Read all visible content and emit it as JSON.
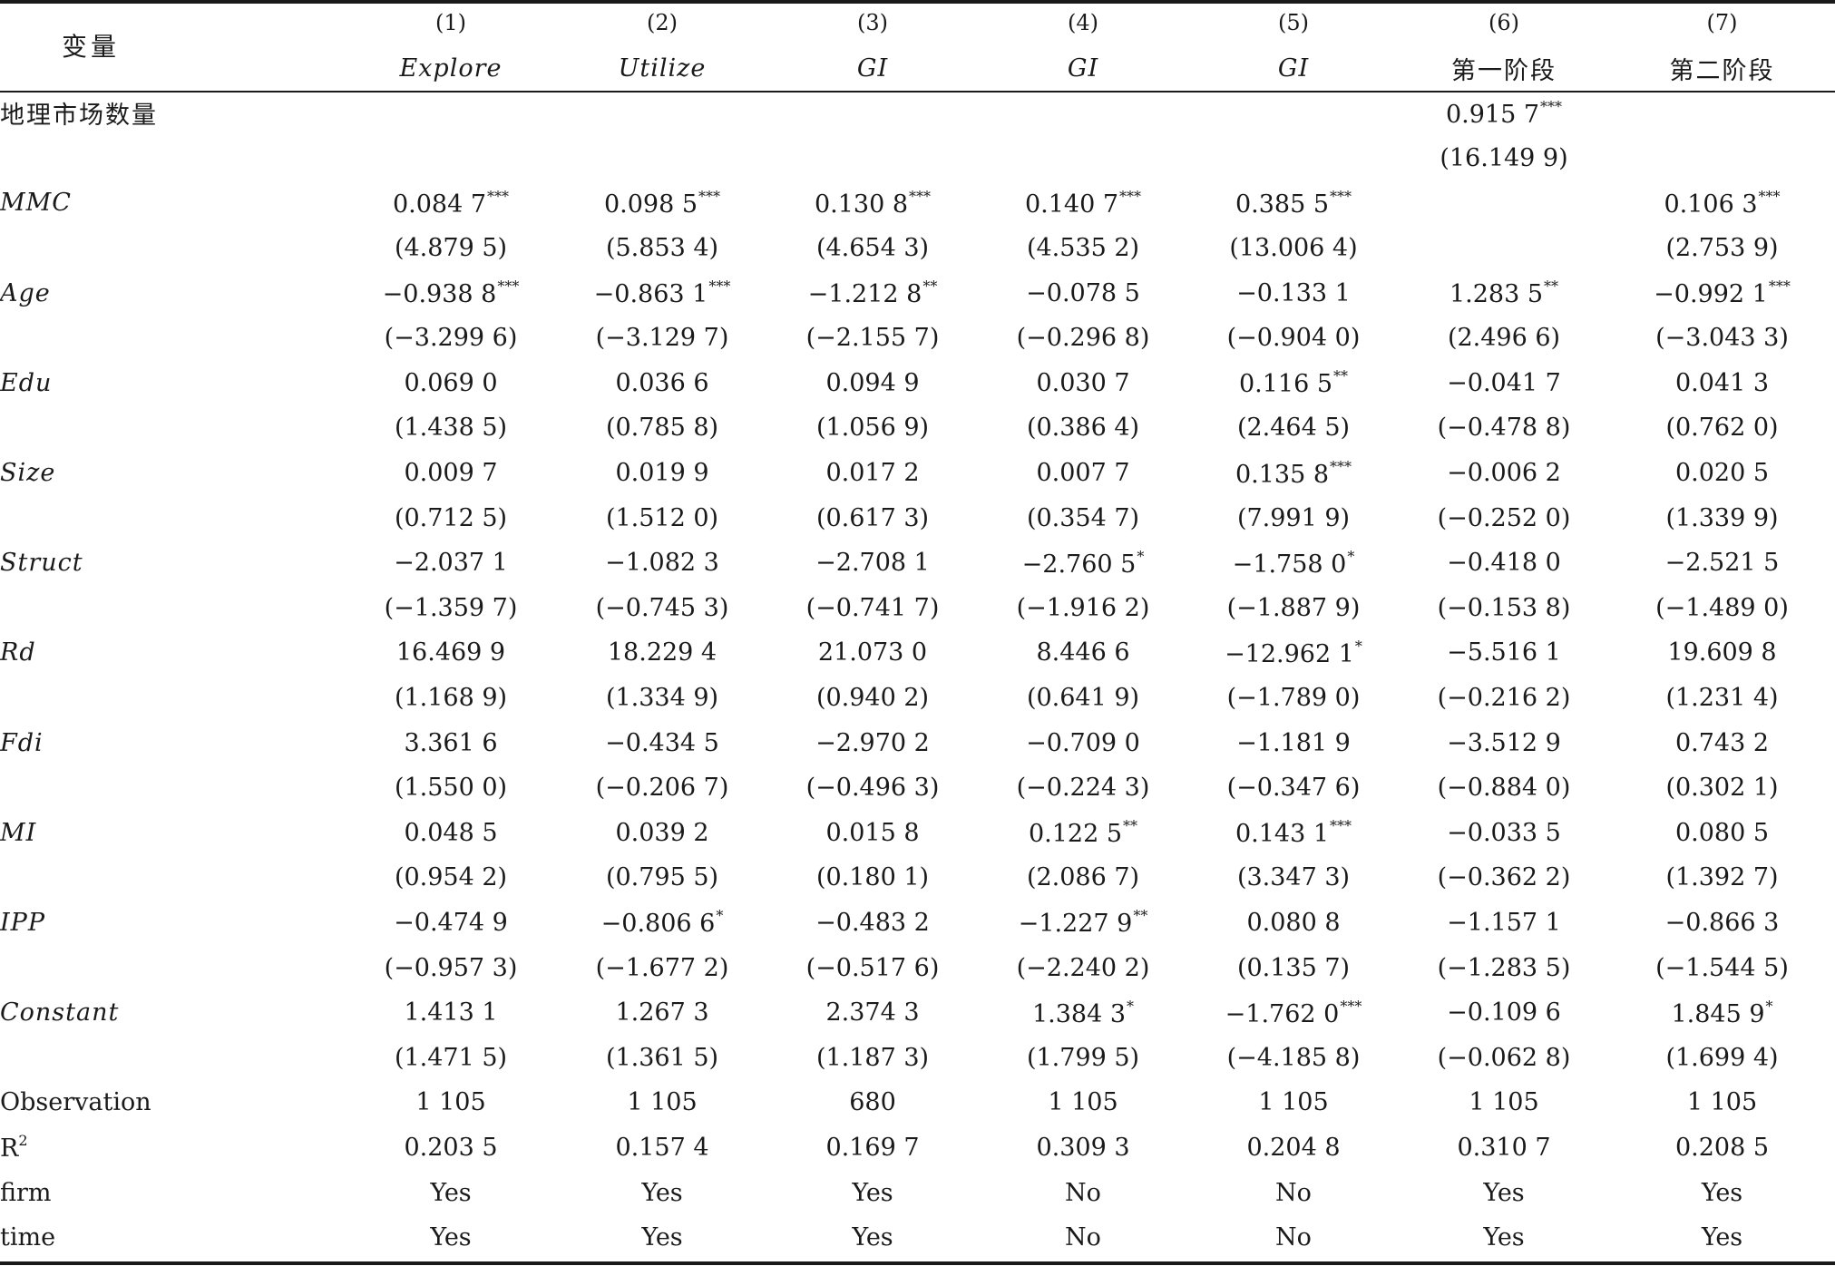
{
  "header": {
    "variable_label": "变量",
    "col_numbers": [
      "(1)",
      "(2)",
      "(3)",
      "(4)",
      "(5)",
      "(6)",
      "(7)"
    ],
    "col_names": [
      "Explore",
      "Utilize",
      "GI",
      "GI",
      "GI",
      "第一阶段",
      "第二阶段"
    ]
  },
  "rows": [
    {
      "label": "地理市场数量",
      "cjk": true,
      "coef": [
        "",
        "",
        "",
        "",
        "",
        "0.915 7",
        ""
      ],
      "stars": [
        "",
        "",
        "",
        "",
        "",
        "***",
        ""
      ],
      "t": [
        "",
        "",
        "",
        "",
        "",
        "(16.149 9)",
        ""
      ]
    },
    {
      "label": "MMC",
      "coef": [
        "0.084 7",
        "0.098 5",
        "0.130 8",
        "0.140 7",
        "0.385 5",
        "",
        "0.106 3"
      ],
      "stars": [
        "***",
        "***",
        "***",
        "***",
        "***",
        "",
        "***"
      ],
      "t": [
        "(4.879 5)",
        "(5.853 4)",
        "(4.654 3)",
        "(4.535 2)",
        "(13.006 4)",
        "",
        "(2.753 9)"
      ]
    },
    {
      "label": "Age",
      "coef": [
        "−0.938 8",
        "−0.863 1",
        "−1.212 8",
        "−0.078 5",
        "−0.133 1",
        "1.283 5",
        "−0.992 1"
      ],
      "stars": [
        "***",
        "***",
        "**",
        "",
        "",
        "**",
        "***"
      ],
      "t": [
        "(−3.299 6)",
        "(−3.129 7)",
        "(−2.155 7)",
        "(−0.296 8)",
        "(−0.904 0)",
        "(2.496 6)",
        "(−3.043 3)"
      ]
    },
    {
      "label": "Edu",
      "coef": [
        "0.069 0",
        "0.036 6",
        "0.094 9",
        "0.030 7",
        "0.116 5",
        "−0.041 7",
        "0.041 3"
      ],
      "stars": [
        "",
        "",
        "",
        "",
        "**",
        "",
        ""
      ],
      "t": [
        "(1.438 5)",
        "(0.785 8)",
        "(1.056 9)",
        "(0.386 4)",
        "(2.464 5)",
        "(−0.478 8)",
        "(0.762 0)"
      ]
    },
    {
      "label": "Size",
      "coef": [
        "0.009 7",
        "0.019 9",
        "0.017 2",
        "0.007 7",
        "0.135 8",
        "−0.006 2",
        "0.020 5"
      ],
      "stars": [
        "",
        "",
        "",
        "",
        "***",
        "",
        ""
      ],
      "t": [
        "(0.712 5)",
        "(1.512 0)",
        "(0.617 3)",
        "(0.354 7)",
        "(7.991 9)",
        "(−0.252 0)",
        "(1.339 9)"
      ]
    },
    {
      "label": "Struct",
      "coef": [
        "−2.037 1",
        "−1.082 3",
        "−2.708 1",
        "−2.760 5",
        "−1.758 0",
        "−0.418 0",
        "−2.521 5"
      ],
      "stars": [
        "",
        "",
        "",
        "*",
        "*",
        "",
        ""
      ],
      "t": [
        "(−1.359 7)",
        "(−0.745 3)",
        "(−0.741 7)",
        "(−1.916 2)",
        "(−1.887 9)",
        "(−0.153 8)",
        "(−1.489 0)"
      ]
    },
    {
      "label": "Rd",
      "coef": [
        "16.469 9",
        "18.229 4",
        "21.073 0",
        "8.446 6",
        "−12.962 1",
        "−5.516 1",
        "19.609 8"
      ],
      "stars": [
        "",
        "",
        "",
        "",
        "*",
        "",
        ""
      ],
      "t": [
        "(1.168 9)",
        "(1.334 9)",
        "(0.940 2)",
        "(0.641 9)",
        "(−1.789 0)",
        "(−0.216 2)",
        "(1.231 4)"
      ]
    },
    {
      "label": "Fdi",
      "coef": [
        "3.361 6",
        "−0.434 5",
        "−2.970 2",
        "−0.709 0",
        "−1.181 9",
        "−3.512 9",
        "0.743 2"
      ],
      "stars": [
        "",
        "",
        "",
        "",
        "",
        "",
        ""
      ],
      "t": [
        "(1.550 0)",
        "(−0.206 7)",
        "(−0.496 3)",
        "(−0.224 3)",
        "(−0.347 6)",
        "(−0.884 0)",
        "(0.302 1)"
      ]
    },
    {
      "label": "MI",
      "coef": [
        "0.048 5",
        "0.039 2",
        "0.015 8",
        "0.122 5",
        "0.143 1",
        "−0.033 5",
        "0.080 5"
      ],
      "stars": [
        "",
        "",
        "",
        "**",
        "***",
        "",
        ""
      ],
      "t": [
        "(0.954 2)",
        "(0.795 5)",
        "(0.180 1)",
        "(2.086 7)",
        "(3.347 3)",
        "(−0.362 2)",
        "(1.392 7)"
      ]
    },
    {
      "label": "IPP",
      "coef": [
        "−0.474 9",
        "−0.806 6",
        "−0.483 2",
        "−1.227 9",
        "0.080 8",
        "−1.157 1",
        "−0.866 3"
      ],
      "stars": [
        "",
        "*",
        "",
        "**",
        "",
        "",
        ""
      ],
      "t": [
        "(−0.957 3)",
        "(−1.677 2)",
        "(−0.517 6)",
        "(−2.240 2)",
        "(0.135 7)",
        "(−1.283 5)",
        "(−1.544 5)"
      ]
    },
    {
      "label": "Constant",
      "coef": [
        "1.413 1",
        "1.267 3",
        "2.374 3",
        "1.384 3",
        "−1.762 0",
        "−0.109 6",
        "1.845 9"
      ],
      "stars": [
        "",
        "",
        "",
        "*",
        "***",
        "",
        "*"
      ],
      "t": [
        "(1.471 5)",
        "(1.361 5)",
        "(1.187 3)",
        "(1.799 5)",
        "(−4.185 8)",
        "(−0.062 8)",
        "(1.699 4)"
      ]
    }
  ],
  "footer": [
    {
      "label": "Observation",
      "values": [
        "1 105",
        "1 105",
        "680",
        "1 105",
        "1 105",
        "1 105",
        "1 105"
      ]
    },
    {
      "label": "R",
      "sup": "2",
      "values": [
        "0.203 5",
        "0.157 4",
        "0.169 7",
        "0.309 3",
        "0.204 8",
        "0.310 7",
        "0.208 5"
      ]
    },
    {
      "label": "firm",
      "values": [
        "Yes",
        "Yes",
        "Yes",
        "No",
        "No",
        "Yes",
        "Yes"
      ]
    },
    {
      "label": "time",
      "values": [
        "Yes",
        "Yes",
        "Yes",
        "No",
        "No",
        "Yes",
        "Yes"
      ]
    }
  ]
}
